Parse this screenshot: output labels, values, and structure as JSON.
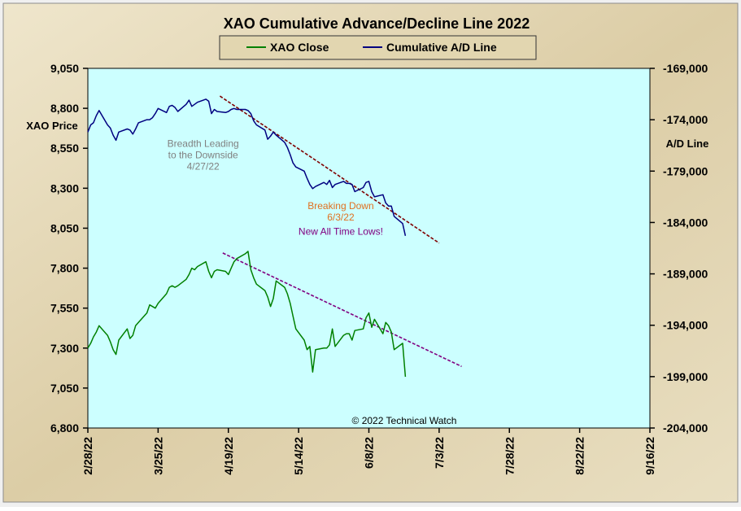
{
  "chart_data": {
    "type": "line",
    "title": "XAO Cumulative Advance/Decline Line 2022",
    "y_left_label": "XAO Price",
    "y_right_label": "A/D Line",
    "y_left_range": [
      6800,
      9050
    ],
    "y_right_range": [
      -204000,
      -169000
    ],
    "y_left_ticks": [
      "9,050",
      "8,800",
      "8,550",
      "8,300",
      "8,050",
      "7,800",
      "7,550",
      "7,300",
      "7,050",
      "6,800"
    ],
    "y_right_ticks": [
      "-169,000",
      "-174,000",
      "-179,000",
      "-184,000",
      "-189,000",
      "-194,000",
      "-199,000",
      "-204,000"
    ],
    "x_ticks": [
      "2/28/22",
      "3/25/22",
      "4/19/22",
      "5/14/22",
      "6/8/22",
      "7/3/22",
      "7/28/22",
      "8/22/22",
      "9/16/22"
    ],
    "x_range": [
      "2022-02-28",
      "2022-09-16"
    ],
    "legend": {
      "position": "top-center"
    },
    "copyright": "© 2022 Technical Watch",
    "colors": {
      "plot_bg": "#ccffff",
      "frame_bg": "#e4d8b6",
      "xao": "#008000",
      "ad": "#000080",
      "trend": "#800000",
      "trend2": "#800080"
    },
    "series": [
      {
        "name": "XAO Close",
        "axis": "left",
        "points": [
          [
            "2022-02-28",
            7300
          ],
          [
            "2022-03-01",
            7330
          ],
          [
            "2022-03-02",
            7370
          ],
          [
            "2022-03-03",
            7400
          ],
          [
            "2022-03-04",
            7440
          ],
          [
            "2022-03-07",
            7380
          ],
          [
            "2022-03-08",
            7340
          ],
          [
            "2022-03-09",
            7290
          ],
          [
            "2022-03-10",
            7260
          ],
          [
            "2022-03-11",
            7350
          ],
          [
            "2022-03-14",
            7420
          ],
          [
            "2022-03-15",
            7360
          ],
          [
            "2022-03-16",
            7380
          ],
          [
            "2022-03-17",
            7440
          ],
          [
            "2022-03-18",
            7460
          ],
          [
            "2022-03-21",
            7520
          ],
          [
            "2022-03-22",
            7570
          ],
          [
            "2022-03-23",
            7560
          ],
          [
            "2022-03-24",
            7550
          ],
          [
            "2022-03-25",
            7580
          ],
          [
            "2022-03-28",
            7640
          ],
          [
            "2022-03-29",
            7680
          ],
          [
            "2022-03-30",
            7690
          ],
          [
            "2022-03-31",
            7680
          ],
          [
            "2022-04-01",
            7690
          ],
          [
            "2022-04-04",
            7730
          ],
          [
            "2022-04-05",
            7760
          ],
          [
            "2022-04-06",
            7800
          ],
          [
            "2022-04-07",
            7790
          ],
          [
            "2022-04-08",
            7810
          ],
          [
            "2022-04-11",
            7840
          ],
          [
            "2022-04-12",
            7780
          ],
          [
            "2022-04-13",
            7740
          ],
          [
            "2022-04-14",
            7780
          ],
          [
            "2022-04-15",
            7790
          ],
          [
            "2022-04-18",
            7780
          ],
          [
            "2022-04-19",
            7760
          ],
          [
            "2022-04-20",
            7800
          ],
          [
            "2022-04-21",
            7840
          ],
          [
            "2022-04-22",
            7860
          ],
          [
            "2022-04-25",
            7890
          ],
          [
            "2022-04-26",
            7905
          ],
          [
            "2022-04-27",
            7790
          ],
          [
            "2022-04-28",
            7740
          ],
          [
            "2022-04-29",
            7700
          ],
          [
            "2022-05-02",
            7660
          ],
          [
            "2022-05-03",
            7620
          ],
          [
            "2022-05-04",
            7560
          ],
          [
            "2022-05-05",
            7610
          ],
          [
            "2022-05-06",
            7720
          ],
          [
            "2022-05-09",
            7680
          ],
          [
            "2022-05-10",
            7640
          ],
          [
            "2022-05-11",
            7580
          ],
          [
            "2022-05-12",
            7500
          ],
          [
            "2022-05-13",
            7420
          ],
          [
            "2022-05-16",
            7350
          ],
          [
            "2022-05-17",
            7290
          ],
          [
            "2022-05-18",
            7310
          ],
          [
            "2022-05-19",
            7150
          ],
          [
            "2022-05-20",
            7290
          ],
          [
            "2022-05-23",
            7300
          ],
          [
            "2022-05-24",
            7300
          ],
          [
            "2022-05-25",
            7320
          ],
          [
            "2022-05-26",
            7420
          ],
          [
            "2022-05-27",
            7310
          ],
          [
            "2022-05-30",
            7380
          ],
          [
            "2022-05-31",
            7390
          ],
          [
            "2022-06-01",
            7390
          ],
          [
            "2022-06-02",
            7350
          ],
          [
            "2022-06-03",
            7410
          ],
          [
            "2022-06-06",
            7420
          ],
          [
            "2022-06-07",
            7490
          ],
          [
            "2022-06-08",
            7520
          ],
          [
            "2022-06-09",
            7430
          ],
          [
            "2022-06-10",
            7480
          ],
          [
            "2022-06-13",
            7390
          ],
          [
            "2022-06-14",
            7460
          ],
          [
            "2022-06-15",
            7440
          ],
          [
            "2022-06-16",
            7400
          ],
          [
            "2022-06-17",
            7290
          ],
          [
            "2022-06-20",
            7330
          ],
          [
            "2022-06-21",
            7120
          ]
        ]
      },
      {
        "name": "Cumulative A/D Line",
        "axis": "right",
        "points": [
          [
            "2022-02-28",
            -175200
          ],
          [
            "2022-03-01",
            -174500
          ],
          [
            "2022-03-02",
            -174300
          ],
          [
            "2022-03-03",
            -173600
          ],
          [
            "2022-03-04",
            -173100
          ],
          [
            "2022-03-07",
            -174500
          ],
          [
            "2022-03-08",
            -174800
          ],
          [
            "2022-03-09",
            -175500
          ],
          [
            "2022-03-10",
            -176000
          ],
          [
            "2022-03-11",
            -175200
          ],
          [
            "2022-03-14",
            -174900
          ],
          [
            "2022-03-15",
            -175000
          ],
          [
            "2022-03-16",
            -175400
          ],
          [
            "2022-03-17",
            -174900
          ],
          [
            "2022-03-18",
            -174300
          ],
          [
            "2022-03-21",
            -174000
          ],
          [
            "2022-03-22",
            -174000
          ],
          [
            "2022-03-23",
            -173800
          ],
          [
            "2022-03-24",
            -173400
          ],
          [
            "2022-03-25",
            -172900
          ],
          [
            "2022-03-28",
            -173300
          ],
          [
            "2022-03-29",
            -172700
          ],
          [
            "2022-03-30",
            -172600
          ],
          [
            "2022-03-31",
            -172800
          ],
          [
            "2022-04-01",
            -173200
          ],
          [
            "2022-04-04",
            -172500
          ],
          [
            "2022-04-05",
            -172100
          ],
          [
            "2022-04-06",
            -172700
          ],
          [
            "2022-04-07",
            -172500
          ],
          [
            "2022-04-08",
            -172300
          ],
          [
            "2022-04-11",
            -172000
          ],
          [
            "2022-04-12",
            -172200
          ],
          [
            "2022-04-13",
            -173400
          ],
          [
            "2022-04-14",
            -173000
          ],
          [
            "2022-04-15",
            -173200
          ],
          [
            "2022-04-18",
            -173300
          ],
          [
            "2022-04-19",
            -173200
          ],
          [
            "2022-04-20",
            -173000
          ],
          [
            "2022-04-21",
            -172900
          ],
          [
            "2022-04-22",
            -173000
          ],
          [
            "2022-04-25",
            -173000
          ],
          [
            "2022-04-26",
            -173100
          ],
          [
            "2022-04-27",
            -173400
          ],
          [
            "2022-04-28",
            -174100
          ],
          [
            "2022-04-29",
            -174500
          ],
          [
            "2022-05-02",
            -175000
          ],
          [
            "2022-05-03",
            -175900
          ],
          [
            "2022-05-04",
            -175600
          ],
          [
            "2022-05-05",
            -175200
          ],
          [
            "2022-05-06",
            -175500
          ],
          [
            "2022-05-09",
            -176200
          ],
          [
            "2022-05-10",
            -176700
          ],
          [
            "2022-05-11",
            -177400
          ],
          [
            "2022-05-12",
            -178200
          ],
          [
            "2022-05-13",
            -178600
          ],
          [
            "2022-05-16",
            -179000
          ],
          [
            "2022-05-17",
            -179700
          ],
          [
            "2022-05-18",
            -180300
          ],
          [
            "2022-05-19",
            -180700
          ],
          [
            "2022-05-20",
            -180500
          ],
          [
            "2022-05-23",
            -180100
          ],
          [
            "2022-05-24",
            -180300
          ],
          [
            "2022-05-25",
            -179900
          ],
          [
            "2022-05-26",
            -180600
          ],
          [
            "2022-05-27",
            -180300
          ],
          [
            "2022-05-30",
            -180000
          ],
          [
            "2022-05-31",
            -180200
          ],
          [
            "2022-06-01",
            -180200
          ],
          [
            "2022-06-02",
            -180300
          ],
          [
            "2022-06-03",
            -181000
          ],
          [
            "2022-06-06",
            -180600
          ],
          [
            "2022-06-07",
            -180100
          ],
          [
            "2022-06-08",
            -180000
          ],
          [
            "2022-06-09",
            -181000
          ],
          [
            "2022-06-10",
            -181500
          ],
          [
            "2022-06-13",
            -181300
          ],
          [
            "2022-06-14",
            -182100
          ],
          [
            "2022-06-15",
            -182400
          ],
          [
            "2022-06-16",
            -182400
          ],
          [
            "2022-06-17",
            -183400
          ],
          [
            "2022-06-20",
            -184100
          ],
          [
            "2022-06-21",
            -185300
          ]
        ]
      }
    ],
    "trendlines": [
      {
        "axis": "right",
        "from": [
          "2022-04-16",
          -171700
        ],
        "to": [
          "2022-07-03",
          -186000
        ],
        "color": "trend"
      },
      {
        "axis": "left",
        "from": [
          "2022-04-17",
          7895
        ],
        "to": [
          "2022-07-11",
          7185
        ],
        "color": "trend2"
      }
    ],
    "annotations": [
      {
        "lines": [
          "Breadth Leading",
          "to the Downside",
          "4/27/22"
        ],
        "color": "#808080",
        "date": "2022-04-10",
        "value_left": 8560
      },
      {
        "lines": [
          "Breaking  Down",
          "6/3/22"
        ],
        "color": "#e07020",
        "date": "2022-05-29",
        "value_left": 8170
      },
      {
        "lines": [
          "New All Time Lows!"
        ],
        "color": "#800080",
        "date": "2022-05-29",
        "value_left": 8010
      }
    ]
  }
}
